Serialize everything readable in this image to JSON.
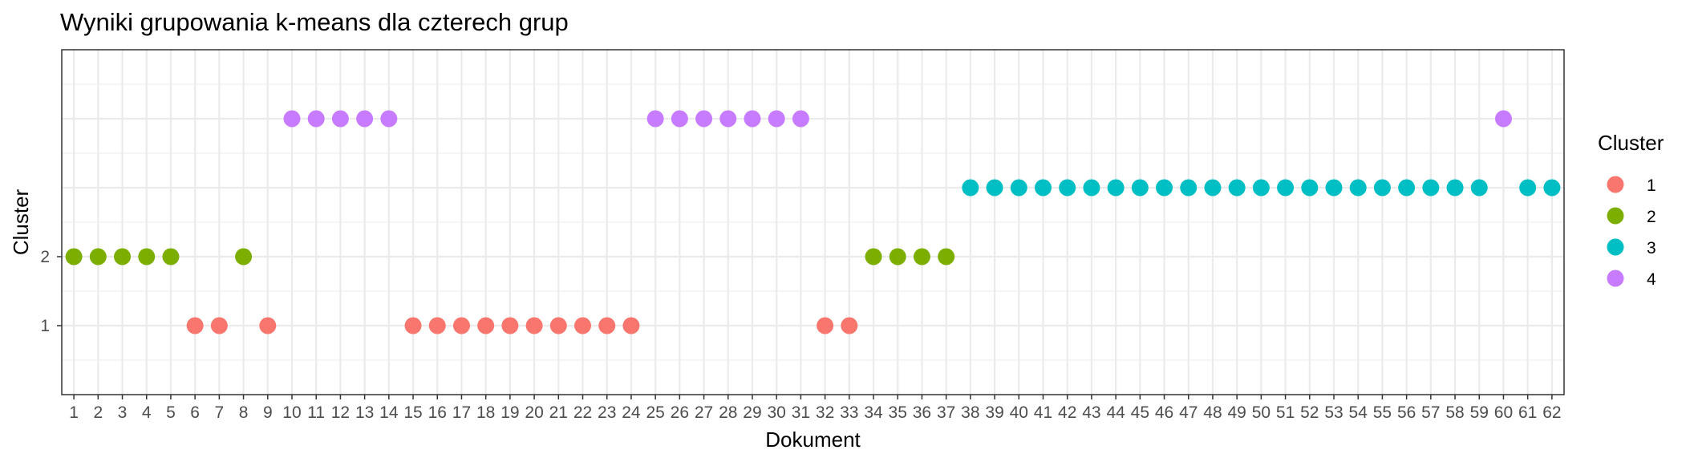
{
  "chart_data": {
    "type": "scatter",
    "title": "Wyniki grupowania k-means dla czterech grup",
    "xlabel": "Dokument",
    "ylabel": "Cluster",
    "x_ticks": [
      "1",
      "2",
      "3",
      "4",
      "5",
      "6",
      "7",
      "8",
      "9",
      "10",
      "11",
      "12",
      "13",
      "14",
      "15",
      "16",
      "17",
      "18",
      "19",
      "20",
      "21",
      "22",
      "23",
      "24",
      "25",
      "26",
      "27",
      "28",
      "29",
      "30",
      "31",
      "32",
      "33",
      "34",
      "35",
      "36",
      "37",
      "38",
      "39",
      "40",
      "41",
      "42",
      "43",
      "44",
      "45",
      "46",
      "47",
      "48",
      "49",
      "50",
      "51",
      "52",
      "53",
      "54",
      "55",
      "56",
      "57",
      "58",
      "59",
      "60",
      "61",
      "62"
    ],
    "y_ticks": [
      "1",
      "2"
    ],
    "xlim": [
      0.5,
      62.5
    ],
    "ylim": [
      0.0,
      5.0
    ],
    "grid": true,
    "legend": {
      "title": "Cluster",
      "position": "right",
      "entries": [
        {
          "label": "1",
          "color": "#F8766D"
        },
        {
          "label": "2",
          "color": "#7CAE00"
        },
        {
          "label": "3",
          "color": "#00BFC4"
        },
        {
          "label": "4",
          "color": "#C77CFF"
        }
      ]
    },
    "x": [
      1,
      2,
      3,
      4,
      5,
      6,
      7,
      8,
      9,
      10,
      11,
      12,
      13,
      14,
      15,
      16,
      17,
      18,
      19,
      20,
      21,
      22,
      23,
      24,
      25,
      26,
      27,
      28,
      29,
      30,
      31,
      32,
      33,
      34,
      35,
      36,
      37,
      38,
      39,
      40,
      41,
      42,
      43,
      44,
      45,
      46,
      47,
      48,
      49,
      50,
      51,
      52,
      53,
      54,
      55,
      56,
      57,
      58,
      59,
      60,
      61,
      62
    ],
    "y": [
      2,
      2,
      2,
      2,
      2,
      1,
      1,
      2,
      1,
      4,
      4,
      4,
      4,
      4,
      1,
      1,
      1,
      1,
      1,
      1,
      1,
      1,
      1,
      1,
      4,
      4,
      4,
      4,
      4,
      4,
      4,
      1,
      1,
      2,
      2,
      2,
      2,
      3,
      3,
      3,
      3,
      3,
      3,
      3,
      3,
      3,
      3,
      3,
      3,
      3,
      3,
      3,
      3,
      3,
      3,
      3,
      3,
      3,
      3,
      4,
      3,
      3
    ]
  }
}
